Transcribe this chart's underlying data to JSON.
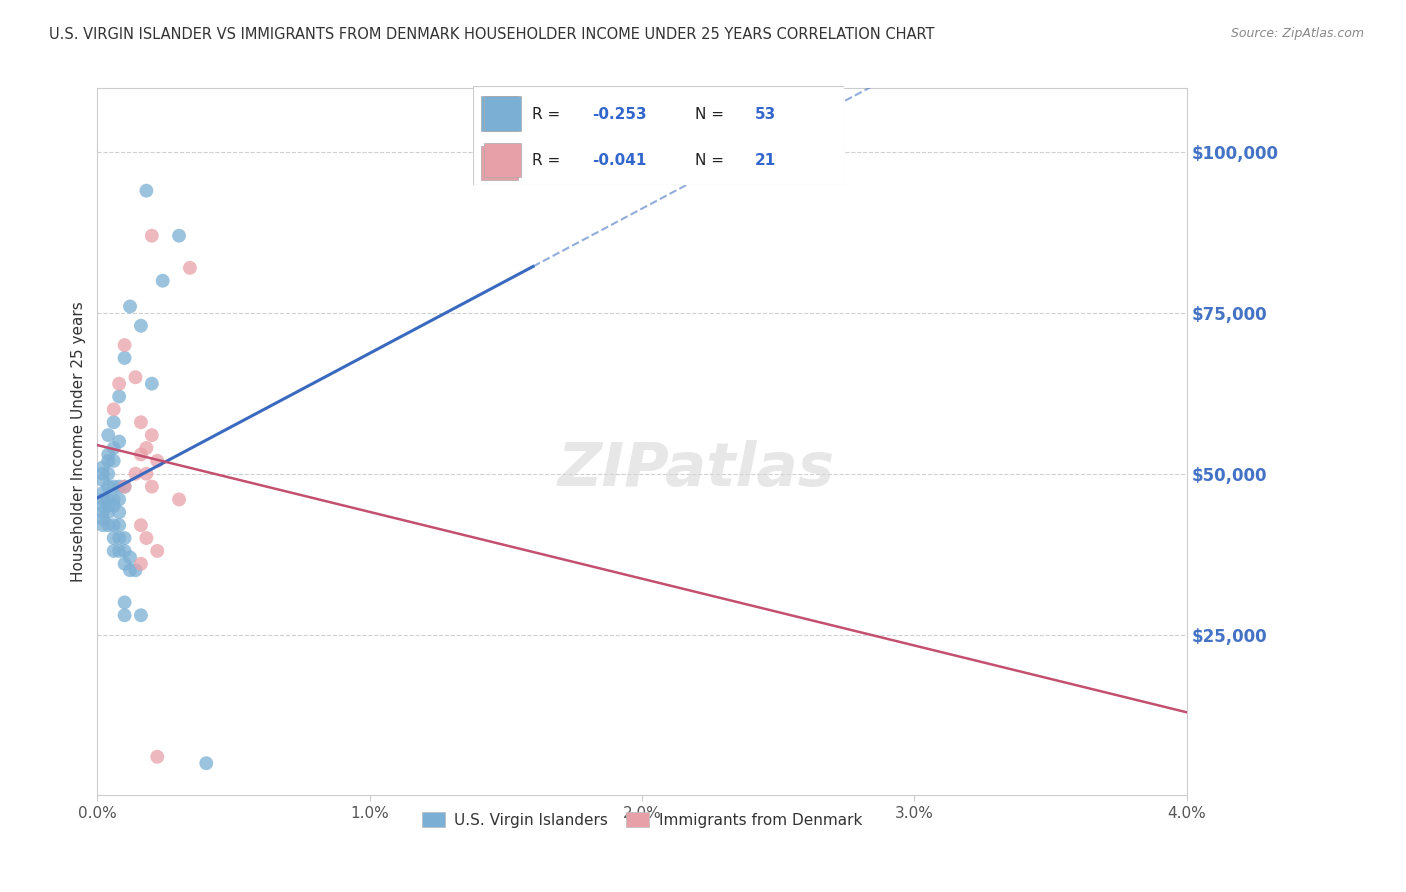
{
  "title": "U.S. VIRGIN ISLANDER VS IMMIGRANTS FROM DENMARK HOUSEHOLDER INCOME UNDER 25 YEARS CORRELATION CHART",
  "source": "Source: ZipAtlas.com",
  "ylabel": "Householder Income Under 25 years",
  "xlim": [
    0.0,
    0.04
  ],
  "ylim": [
    0,
    110000
  ],
  "xticks": [
    0.0,
    0.01,
    0.02,
    0.03,
    0.04
  ],
  "xtick_labels": [
    "0.0%",
    "1.0%",
    "2.0%",
    "3.0%",
    "4.0%"
  ],
  "ytick_labels_right": [
    "$25,000",
    "$50,000",
    "$75,000",
    "$100,000"
  ],
  "ytick_vals_right": [
    25000,
    50000,
    75000,
    100000
  ],
  "watermark": "ZIPatlas",
  "legend_x_labels": [
    "U.S. Virgin Islanders",
    "Immigrants from Denmark"
  ],
  "blue_color": "#7bafd4",
  "pink_color": "#e8a0a8",
  "blue_line_color": "#3a6abf",
  "pink_line_color": "#c45070",
  "blue_scatter": [
    [
      0.0018,
      94000
    ],
    [
      0.003,
      87000
    ],
    [
      0.0024,
      80000
    ],
    [
      0.0012,
      76000
    ],
    [
      0.0016,
      73000
    ],
    [
      0.001,
      68000
    ],
    [
      0.002,
      64000
    ],
    [
      0.0008,
      62000
    ],
    [
      0.0006,
      58000
    ],
    [
      0.0004,
      56000
    ],
    [
      0.0008,
      55000
    ],
    [
      0.0006,
      54000
    ],
    [
      0.0004,
      53000
    ],
    [
      0.0004,
      52000
    ],
    [
      0.0006,
      52000
    ],
    [
      0.0002,
      51000
    ],
    [
      0.0002,
      50000
    ],
    [
      0.0004,
      50000
    ],
    [
      0.0002,
      49000
    ],
    [
      0.0004,
      48000
    ],
    [
      0.0006,
      48000
    ],
    [
      0.0008,
      48000
    ],
    [
      0.001,
      48000
    ],
    [
      0.0002,
      47000
    ],
    [
      0.0004,
      46000
    ],
    [
      0.0002,
      46000
    ],
    [
      0.0006,
      46000
    ],
    [
      0.0008,
      46000
    ],
    [
      0.0002,
      45000
    ],
    [
      0.0004,
      45000
    ],
    [
      0.0006,
      45000
    ],
    [
      0.0002,
      44000
    ],
    [
      0.0004,
      44000
    ],
    [
      0.0008,
      44000
    ],
    [
      0.0002,
      43000
    ],
    [
      0.0002,
      42000
    ],
    [
      0.0004,
      42000
    ],
    [
      0.0006,
      42000
    ],
    [
      0.0008,
      42000
    ],
    [
      0.0006,
      40000
    ],
    [
      0.0008,
      40000
    ],
    [
      0.001,
      40000
    ],
    [
      0.0006,
      38000
    ],
    [
      0.0008,
      38000
    ],
    [
      0.001,
      38000
    ],
    [
      0.0012,
      37000
    ],
    [
      0.001,
      36000
    ],
    [
      0.0012,
      35000
    ],
    [
      0.0014,
      35000
    ],
    [
      0.001,
      30000
    ],
    [
      0.001,
      28000
    ],
    [
      0.0016,
      28000
    ],
    [
      0.004,
      5000
    ]
  ],
  "pink_scatter": [
    [
      0.002,
      87000
    ],
    [
      0.0034,
      82000
    ],
    [
      0.001,
      70000
    ],
    [
      0.0014,
      65000
    ],
    [
      0.0008,
      64000
    ],
    [
      0.0006,
      60000
    ],
    [
      0.0016,
      58000
    ],
    [
      0.002,
      56000
    ],
    [
      0.0018,
      54000
    ],
    [
      0.0016,
      53000
    ],
    [
      0.0022,
      52000
    ],
    [
      0.0014,
      50000
    ],
    [
      0.0018,
      50000
    ],
    [
      0.002,
      48000
    ],
    [
      0.001,
      48000
    ],
    [
      0.003,
      46000
    ],
    [
      0.0016,
      42000
    ],
    [
      0.0018,
      40000
    ],
    [
      0.0022,
      38000
    ],
    [
      0.0016,
      36000
    ],
    [
      0.0022,
      6000
    ]
  ],
  "background_color": "#ffffff",
  "grid_color": "#d0d0d0",
  "blue_line_x_end_solid": 0.016,
  "pink_line_x_end_solid": 0.04
}
